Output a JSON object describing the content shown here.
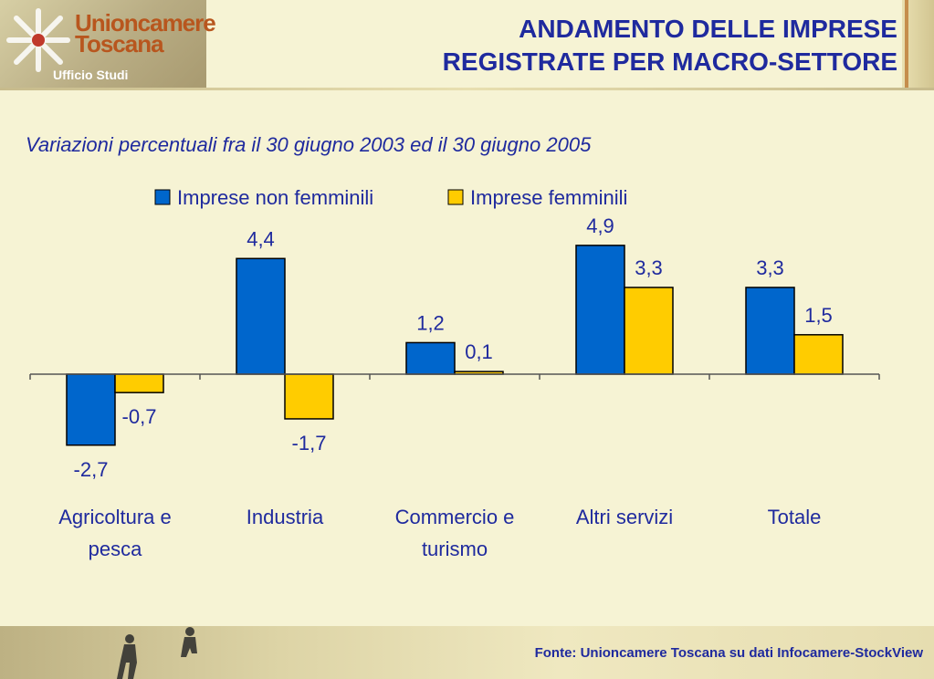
{
  "header": {
    "logo_name": "Unioncamere Toscana",
    "logo_sub": "Ufficio Studi",
    "title_line1": "ANDAMENTO DELLE IMPRESE",
    "title_line2": "REGISTRATE PER MACRO-SETTORE"
  },
  "footer": {
    "source": "Fonte: Unioncamere Toscana su dati Infocamere-StockView"
  },
  "colors": {
    "blue": "#0066cc",
    "yellow": "#ffcc00",
    "title": "#1f2a9e"
  },
  "chart_data": {
    "type": "bar",
    "title": "Variazioni percentuali fra il 30 giugno 2003 ed il 30 giugno 2005",
    "categories": [
      [
        "Agricoltura e",
        "pesca"
      ],
      [
        "Industria"
      ],
      [
        "Commercio e",
        "turismo"
      ],
      [
        "Altri servizi"
      ],
      [
        "Totale"
      ]
    ],
    "series": [
      {
        "name": "Imprese non femminili",
        "values": [
          -2.7,
          4.4,
          1.2,
          4.9,
          3.3
        ],
        "labels": [
          "-2,7",
          "4,4",
          "1,2",
          "4,9",
          "3,3"
        ],
        "color": "#0066cc"
      },
      {
        "name": "Imprese femminili",
        "values": [
          -0.7,
          -1.7,
          0.1,
          3.3,
          1.5
        ],
        "labels": [
          "-0,7",
          "-1,7",
          "0,1",
          "3,3",
          "1,5"
        ],
        "color": "#ffcc00"
      }
    ],
    "ylim": [
      -3,
      5
    ],
    "legend": "top",
    "grid": false
  }
}
